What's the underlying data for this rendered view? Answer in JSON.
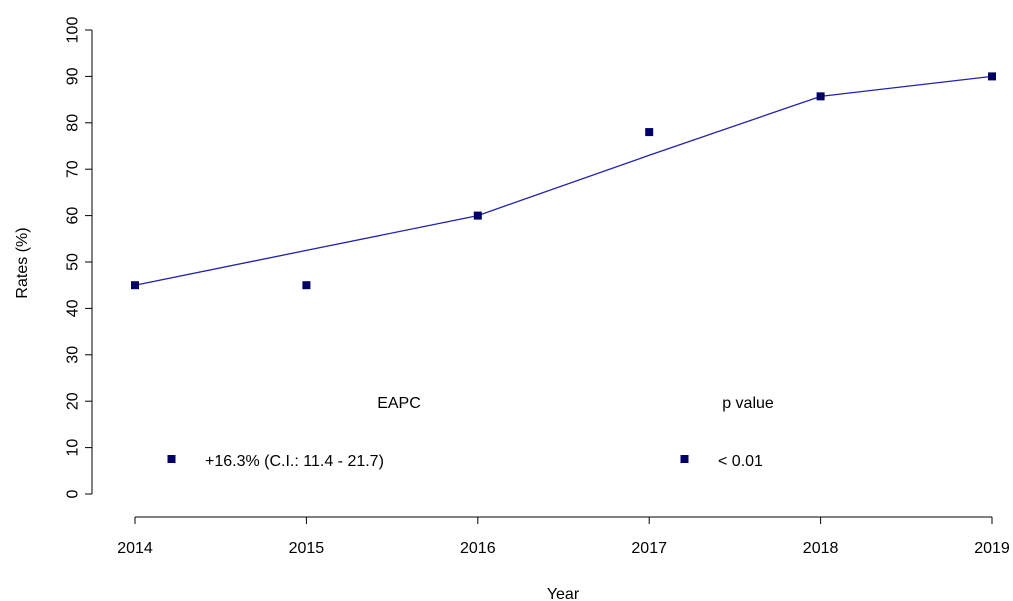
{
  "chart_data": {
    "type": "scatter",
    "xlabel": "Year",
    "ylabel": "Rates (%)",
    "x": [
      2014,
      2015,
      2016,
      2017,
      2018,
      2019
    ],
    "xlim": [
      2014,
      2019
    ],
    "ylim": [
      0,
      100
    ],
    "y_ticks": [
      0,
      10,
      20,
      30,
      40,
      50,
      60,
      70,
      80,
      90,
      100
    ],
    "x_ticks": [
      2014,
      2015,
      2016,
      2017,
      2018,
      2019
    ],
    "series": [
      {
        "kind": "points",
        "values": [
          45,
          45,
          60,
          78,
          85.7,
          90
        ]
      },
      {
        "kind": "line",
        "values": [
          45,
          52.5,
          60,
          73,
          85.7,
          90
        ]
      }
    ],
    "colors": {
      "points": "#000066",
      "line": "#2222aa"
    },
    "grid": false,
    "legend": {
      "position": "bottom",
      "eapc_header": "EAPC",
      "eapc_value": "+16.3% (C.I.: 11.4 - 21.7)",
      "p_header": "p value",
      "p_value": "< 0.01"
    }
  }
}
